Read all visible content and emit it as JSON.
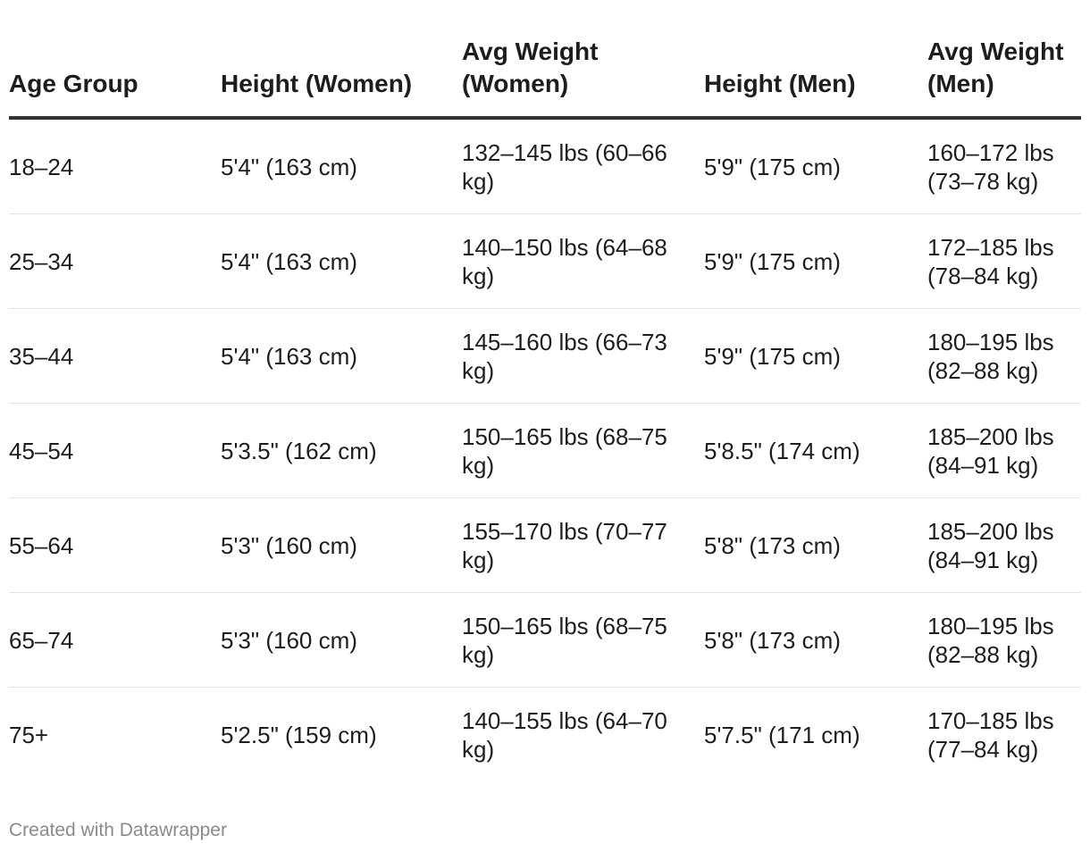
{
  "chart_data": {
    "type": "table",
    "columns": [
      "Age Group",
      "Height (Women)",
      "Avg Weight (Women)",
      "Height (Men)",
      "Avg Weight (Men)"
    ],
    "rows": [
      [
        "18–24",
        "5'4\" (163 cm)",
        "132–145 lbs (60–66 kg)",
        "5'9\" (175 cm)",
        "160–172 lbs (73–78 kg)"
      ],
      [
        "25–34",
        "5'4\" (163 cm)",
        "140–150 lbs (64–68 kg)",
        "5'9\" (175 cm)",
        "172–185 lbs (78–84 kg)"
      ],
      [
        "35–44",
        "5'4\" (163 cm)",
        "145–160 lbs (66–73 kg)",
        "5'9\" (175 cm)",
        "180–195 lbs (82–88 kg)"
      ],
      [
        "45–54",
        "5'3.5\" (162 cm)",
        "150–165 lbs (68–75 kg)",
        "5'8.5\" (174 cm)",
        "185–200 lbs (84–91 kg)"
      ],
      [
        "55–64",
        "5'3\" (160 cm)",
        "155–170 lbs (70–77 kg)",
        "5'8\" (173 cm)",
        "185–200 lbs (84–91 kg)"
      ],
      [
        "65–74",
        "5'3\" (160 cm)",
        "150–165 lbs (68–75 kg)",
        "5'8\" (173 cm)",
        "180–195 lbs (82–88 kg)"
      ],
      [
        "75+",
        "5'2.5\" (159 cm)",
        "140–155 lbs (64–70 kg)",
        "5'7.5\" (171 cm)",
        "170–185 lbs (77–84 kg)"
      ]
    ]
  },
  "footer": {
    "credit": "Created with Datawrapper"
  },
  "colors": {
    "text": "#1d1d1d",
    "header_rule": "#333333",
    "row_rule": "#e4e4e4",
    "footer_text": "#8a8a8a"
  }
}
